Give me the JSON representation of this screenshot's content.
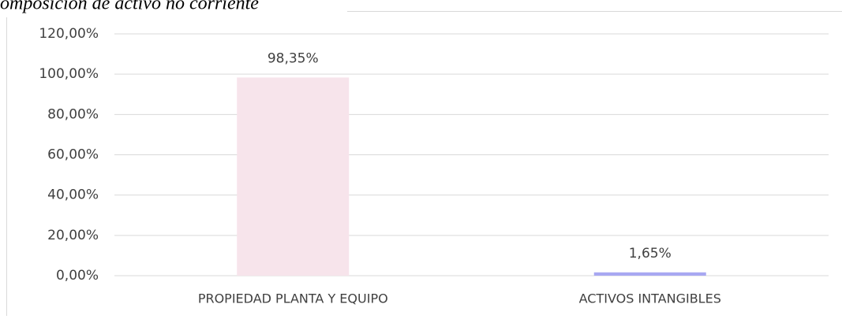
{
  "chart_data": {
    "type": "bar",
    "title": "omposición de activo no corriente",
    "categories": [
      "PROPIEDAD PLANTA Y EQUIPO",
      "ACTIVOS INTANGIBLES"
    ],
    "values": [
      98.35,
      1.65
    ],
    "value_labels": [
      "98,35%",
      "1,65%"
    ],
    "colors": [
      "#f7e4eb",
      "#a8a8f2"
    ],
    "ylim": [
      0,
      120
    ],
    "yticks": [
      {
        "value": 0,
        "label": "0,00%"
      },
      {
        "value": 20,
        "label": "20,00%"
      },
      {
        "value": 40,
        "label": "40,00%"
      },
      {
        "value": 60,
        "label": "60,00%"
      },
      {
        "value": 80,
        "label": "80,00%"
      },
      {
        "value": 100,
        "label": "100,00%"
      },
      {
        "value": 120,
        "label": "120,00%"
      }
    ],
    "grid": true
  }
}
